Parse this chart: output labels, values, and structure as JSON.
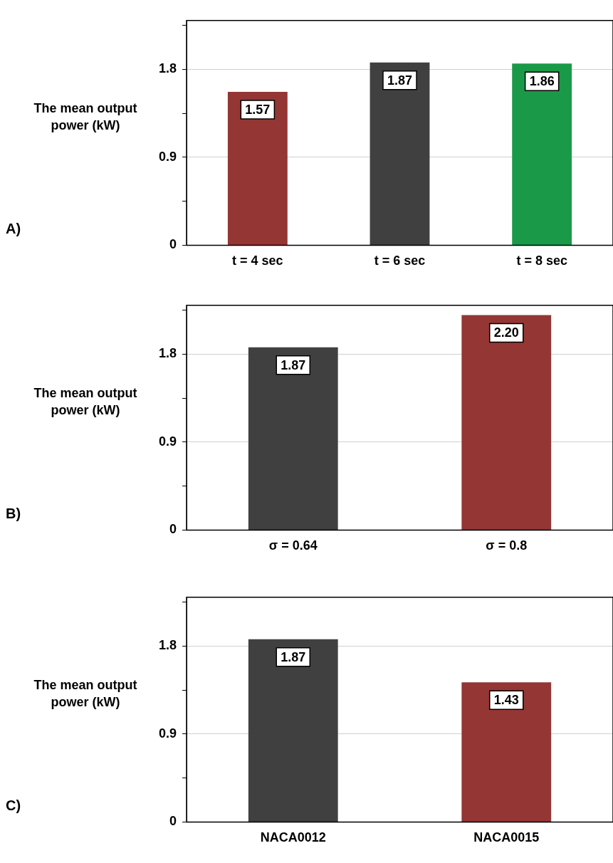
{
  "chart_data": [
    {
      "type": "bar",
      "ylabel": "The mean output power (kW)",
      "annotations": [
        "A)"
      ],
      "categories": [
        "t = 4 sec",
        "t = 6 sec",
        "t = 8 sec"
      ],
      "values": [
        1.57,
        1.87,
        1.86
      ],
      "colors": [
        "#943634",
        "#404040",
        "#1a9a48"
      ],
      "value_labels": [
        "1.57",
        "1.87",
        "1.86"
      ],
      "ylim": [
        0,
        2.3
      ],
      "yticks": [
        0,
        {
          "value": 0.45,
          "label": null
        },
        0.9,
        {
          "value": 1.35,
          "label": null
        },
        1.8,
        {
          "value": 2.25,
          "label": null
        }
      ],
      "grid": "y",
      "legend": false
    },
    {
      "type": "bar",
      "ylabel": "The mean output power (kW)",
      "annotations": [
        "B)"
      ],
      "categories": [
        "σ = 0.64",
        "σ = 0.8"
      ],
      "values": [
        1.87,
        2.2
      ],
      "colors": [
        "#404040",
        "#943634"
      ],
      "value_labels": [
        "1.87",
        "2.20"
      ],
      "ylim": [
        0,
        2.3
      ],
      "yticks": [
        0,
        {
          "value": 0.45,
          "label": null
        },
        0.9,
        {
          "value": 1.35,
          "label": null
        },
        1.8,
        {
          "value": 2.25,
          "label": null
        }
      ],
      "grid": "y",
      "legend": false
    },
    {
      "type": "bar",
      "ylabel": "The mean output power (kW)",
      "annotations": [
        "C)"
      ],
      "categories": [
        "NACA0012",
        "NACA0015"
      ],
      "values": [
        1.87,
        1.43
      ],
      "colors": [
        "#404040",
        "#943634"
      ],
      "value_labels": [
        "1.87",
        "1.43"
      ],
      "ylim": [
        0,
        2.3
      ],
      "yticks": [
        0,
        {
          "value": 0.45,
          "label": null
        },
        0.9,
        {
          "value": 1.35,
          "label": null
        },
        1.8,
        {
          "value": 2.25,
          "label": null
        }
      ],
      "grid": "y",
      "legend": false
    }
  ]
}
